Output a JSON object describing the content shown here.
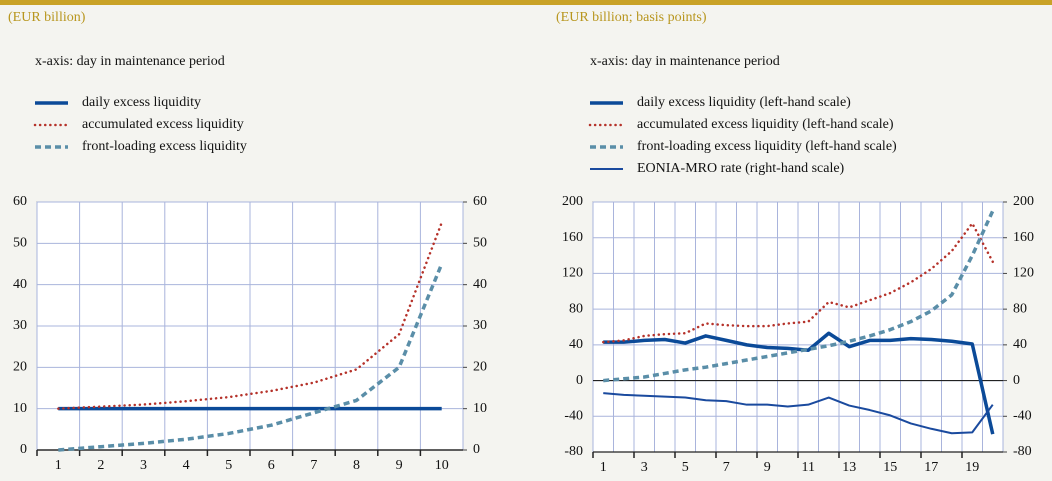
{
  "chart_data": [
    {
      "type": "line",
      "title": "(EUR billion)",
      "subtitle": "x-axis: day in maintenance period",
      "x": [
        1,
        2,
        3,
        4,
        5,
        6,
        7,
        8,
        9,
        10
      ],
      "xlim": [
        0.5,
        10.5
      ],
      "xticks": [
        1,
        2,
        3,
        4,
        5,
        6,
        7,
        8,
        9,
        10
      ],
      "ylim": [
        0,
        60
      ],
      "yticks": [
        0,
        10,
        20,
        30,
        40,
        50,
        60
      ],
      "y2lim": [
        0,
        60
      ],
      "y2ticks": [
        0,
        10,
        20,
        30,
        40,
        50,
        60
      ],
      "grid": true,
      "series": [
        {
          "name": "daily excess liquidity",
          "color": "#0b4a98",
          "style": "solid",
          "values": [
            10,
            10,
            10,
            10,
            10,
            10,
            10,
            10,
            10,
            10
          ]
        },
        {
          "name": "accumulated excess liquidity",
          "color": "#b5322a",
          "style": "dotted",
          "values": [
            10,
            10.5,
            11,
            11.8,
            12.8,
            14.3,
            16.3,
            19.5,
            28,
            55
          ]
        },
        {
          "name": "front-loading excess liquidity",
          "color": "#5a8ea8",
          "style": "dashed",
          "values": [
            0,
            0.8,
            1.6,
            2.6,
            4,
            6,
            9,
            12,
            20,
            45
          ]
        }
      ]
    },
    {
      "type": "line",
      "title": "(EUR billion; basis points)",
      "subtitle": "x-axis: day in maintenance period",
      "x": [
        1,
        2,
        3,
        4,
        5,
        6,
        7,
        8,
        9,
        10,
        11,
        12,
        13,
        14,
        15,
        16,
        17,
        18,
        19,
        20
      ],
      "xlim": [
        0.5,
        20.5
      ],
      "xticks": [
        1,
        3,
        5,
        7,
        9,
        11,
        13,
        15,
        17,
        19
      ],
      "ylim": [
        -80,
        200
      ],
      "yticks": [
        -80,
        -40,
        0,
        40,
        80,
        120,
        160,
        200
      ],
      "y2lim": [
        -80,
        200
      ],
      "y2ticks": [
        -80,
        -40,
        0,
        40,
        80,
        120,
        160,
        200
      ],
      "grid": true,
      "series": [
        {
          "name": "daily excess liquidity (left-hand scale)",
          "color": "#0b4a98",
          "style": "solid",
          "values": [
            43,
            43,
            45,
            46,
            42,
            50,
            45,
            40,
            37,
            36,
            34,
            53,
            38,
            45,
            45,
            47,
            46,
            44,
            41,
            -60
          ]
        },
        {
          "name": "accumulated excess liquidity (left-hand scale)",
          "color": "#b5322a",
          "style": "dotted",
          "values": [
            43,
            45,
            50,
            52,
            53,
            64,
            62,
            61,
            61,
            64,
            66,
            88,
            82,
            90,
            98,
            110,
            125,
            145,
            176,
            133
          ]
        },
        {
          "name": "front-loading excess liquidity (left-hand scale)",
          "color": "#5a8ea8",
          "style": "dashed",
          "values": [
            0,
            2,
            4,
            8,
            12,
            15,
            19,
            23,
            27,
            31,
            35,
            39,
            44,
            50,
            57,
            66,
            78,
            96,
            140,
            190
          ]
        },
        {
          "name": "EONIA-MRO rate (right-hand scale)",
          "color": "#1a4a9e",
          "style": "thin",
          "axis": "y2",
          "values": [
            -14,
            -16,
            -17,
            -18,
            -19,
            -22,
            -23,
            -27,
            -27,
            -29,
            -27,
            -19,
            -28,
            -33,
            -39,
            -48,
            -54,
            -59,
            -58,
            -27
          ]
        }
      ]
    }
  ]
}
